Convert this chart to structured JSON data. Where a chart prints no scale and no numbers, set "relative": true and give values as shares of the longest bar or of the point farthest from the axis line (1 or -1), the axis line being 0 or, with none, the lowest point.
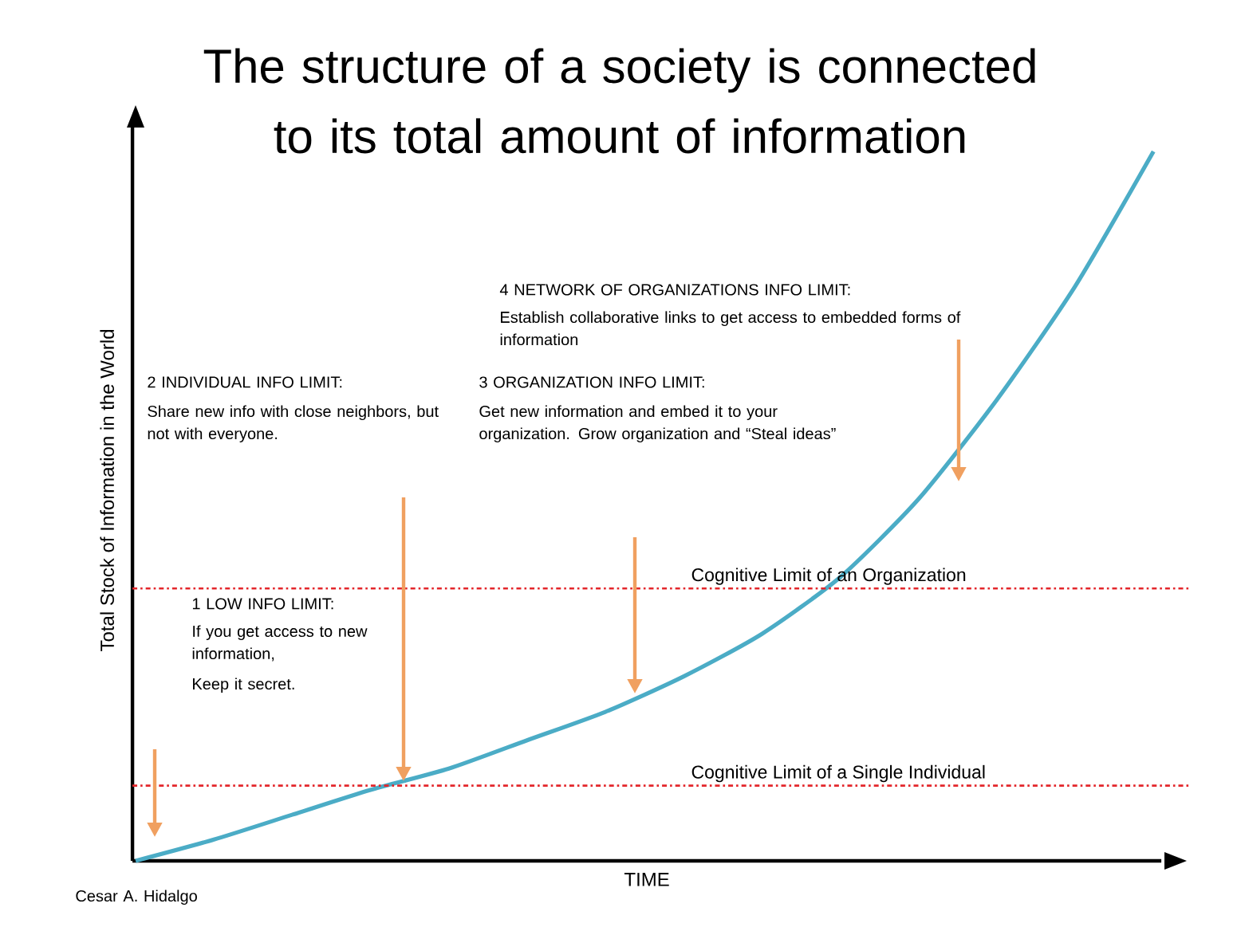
{
  "chart_data": {
    "type": "line",
    "title": "The structure of a society is connected to its total amount of information",
    "xlabel": "TIME",
    "ylabel": "Total Stock of Information in the World",
    "categories": [
      null,
      null,
      null,
      null,
      null,
      null,
      null,
      null,
      null,
      null,
      null,
      null,
      null,
      null
    ],
    "relative": true,
    "series": [
      {
        "color": "#4bacc6",
        "values": [
          0,
          0.03,
          0.065,
          0.1,
          0.13,
          0.17,
          0.21,
          0.26,
          0.32,
          0.4,
          0.51,
          0.65,
          0.81,
          1.0
        ]
      }
    ],
    "ref_lines": [
      {
        "axis": "y",
        "value": 0.106,
        "label": "Cognitive Limit of a Single Individual",
        "color": "#e3262b",
        "line_style": "dashdot"
      },
      {
        "axis": "y",
        "value": 0.384,
        "label": "Cognitive Limit of an Organization",
        "color": "#e3262b",
        "line_style": "dashdot"
      }
    ],
    "annotations": [
      "1 LOW INFO LIMIT:",
      "If you get access to new information,",
      "Keep it secret.",
      "2 INDIVIDUAL INFO LIMIT:",
      "Share new info with close neighbors, but not with everyone.",
      "3 ORGANIZATION INFO LIMIT:",
      "Get new information and embed it to your organization. Grow organization and “Steal ideas”",
      "4 NETWORK OF ORGANIZATIONS INFO LIMIT:",
      "Establish collaborative links to get access to embedded forms of information",
      "Cesar A. Hidalgo"
    ]
  }
}
